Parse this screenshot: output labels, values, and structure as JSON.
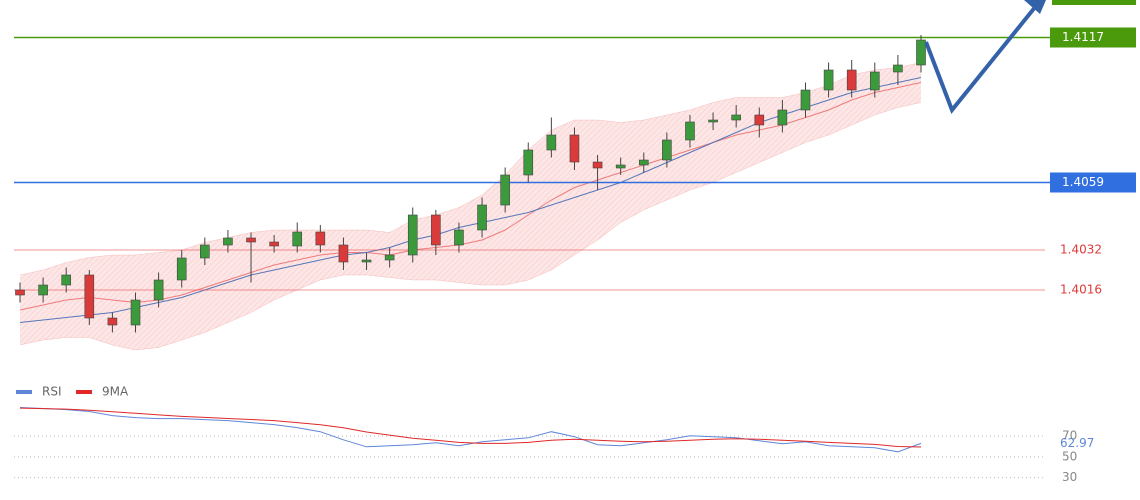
{
  "chart_data": [
    {
      "type": "candlestick",
      "ylim": [
        1.3984,
        1.4132
      ],
      "up_color": "#3c9a3c",
      "down_color": "#d93a3a",
      "candles": {
        "open": [
          1.4016,
          1.4014,
          1.4018,
          1.4022,
          1.40048,
          1.4002,
          1.4012,
          1.402,
          1.40288,
          1.4034,
          1.40368,
          1.40352,
          1.40336,
          1.40392,
          1.4034,
          1.40272,
          1.4028,
          1.403,
          1.4046,
          1.4034,
          1.404,
          1.405,
          1.4062,
          1.4072,
          1.4078,
          1.40672,
          1.40648,
          1.4066,
          1.4068,
          1.4076,
          1.40832,
          1.4084,
          1.4086,
          1.4082,
          1.4088,
          1.4096,
          1.4104,
          1.4096,
          1.41032,
          1.4106
        ],
        "high": [
          1.4019,
          1.4021,
          1.4025,
          1.4024,
          1.4007,
          1.4015,
          1.4023,
          1.4032,
          1.4037,
          1.404,
          1.4039,
          1.4038,
          1.4043,
          1.4042,
          1.4037,
          1.4031,
          1.4033,
          1.4049,
          1.4048,
          1.4043,
          1.4053,
          1.4065,
          1.4075,
          1.4085,
          1.4081,
          1.407,
          1.4069,
          1.4071,
          1.4079,
          1.4086,
          1.4087,
          1.409,
          1.4089,
          1.4092,
          1.4099,
          1.4107,
          1.4108,
          1.4107,
          1.411,
          1.4118
        ],
        "low": [
          1.4011,
          1.4011,
          1.4015,
          1.4002,
          1.3999,
          1.3999,
          1.4009,
          1.4017,
          1.4026,
          1.4031,
          1.4019,
          1.4031,
          1.4031,
          1.4031,
          1.4024,
          1.4024,
          1.4025,
          1.4027,
          1.403,
          1.4031,
          1.4037,
          1.4047,
          1.4059,
          1.4069,
          1.4064,
          1.4056,
          1.4062,
          1.4063,
          1.4065,
          1.4073,
          1.408,
          1.4081,
          1.4077,
          1.4079,
          1.4085,
          1.4093,
          1.4093,
          1.4093,
          1.4098,
          1.4103
        ],
        "close": [
          1.4014,
          1.4018,
          1.4022,
          1.40048,
          1.4002,
          1.4012,
          1.402,
          1.40288,
          1.4034,
          1.40368,
          1.40352,
          1.40336,
          1.40392,
          1.4034,
          1.40272,
          1.4028,
          1.403,
          1.4046,
          1.4034,
          1.404,
          1.405,
          1.4062,
          1.4072,
          1.4078,
          1.40672,
          1.40648,
          1.4066,
          1.4068,
          1.4076,
          1.40832,
          1.4084,
          1.4086,
          1.4082,
          1.4088,
          1.4096,
          1.4104,
          1.4096,
          1.41032,
          1.4106,
          1.4116
        ]
      },
      "bands": {
        "color": "#f08a8a",
        "upper": [
          1.4022,
          1.4024,
          1.4027,
          1.4029,
          1.403,
          1.403,
          1.4031,
          1.4032,
          1.4035,
          1.4037,
          1.4039,
          1.404,
          1.404,
          1.404,
          1.404,
          1.404,
          1.4039,
          1.4044,
          1.4046,
          1.4049,
          1.4054,
          1.4062,
          1.4072,
          1.408,
          1.4084,
          1.4084,
          1.4083,
          1.4084,
          1.4086,
          1.4088,
          1.4091,
          1.4093,
          1.4093,
          1.4093,
          1.4095,
          1.4098,
          1.4102,
          1.4104,
          1.4105,
          1.4107
        ],
        "lower": [
          1.3994,
          1.3996,
          1.3997,
          1.3997,
          1.3994,
          1.3992,
          1.3993,
          1.3996,
          1.3999,
          1.4003,
          1.4007,
          1.4012,
          1.4016,
          1.402,
          1.4022,
          1.4022,
          1.4021,
          1.402,
          1.402,
          1.4019,
          1.4018,
          1.4018,
          1.402,
          1.4024,
          1.403,
          1.4036,
          1.4043,
          1.4048,
          1.4052,
          1.4056,
          1.4059,
          1.4063,
          1.4067,
          1.4071,
          1.4075,
          1.4078,
          1.4082,
          1.4086,
          1.4089,
          1.4091
        ]
      },
      "lines": [
        {
          "color": "#ef7b7b",
          "values": [
            1.4008,
            1.401,
            1.4012,
            1.4013,
            1.4012,
            1.4011,
            1.4012,
            1.4014,
            1.4017,
            1.402,
            1.4023,
            1.4026,
            1.4028,
            1.403,
            1.4031,
            1.4031,
            1.403,
            1.4032,
            1.4033,
            1.4034,
            1.4036,
            1.404,
            1.4046,
            1.4052,
            1.4057,
            1.406,
            1.4063,
            1.4066,
            1.4069,
            1.4072,
            1.4075,
            1.4078,
            1.408,
            1.4082,
            1.4085,
            1.4088,
            1.4092,
            1.4095,
            1.4097,
            1.4099
          ]
        },
        {
          "color": "#5577bb",
          "values": [
            1.4003,
            1.4004,
            1.4005,
            1.4006,
            1.4007,
            1.4009,
            1.4011,
            1.4013,
            1.4016,
            1.4019,
            1.4022,
            1.4024,
            1.4026,
            1.4028,
            1.403,
            1.4031,
            1.4033,
            1.4036,
            1.4038,
            1.4041,
            1.4043,
            1.4045,
            1.4047,
            1.405,
            1.4053,
            1.4056,
            1.4059,
            1.4063,
            1.4067,
            1.4071,
            1.4075,
            1.4079,
            1.4083,
            1.4086,
            1.4089,
            1.4092,
            1.4095,
            1.4097,
            1.4099,
            1.4101
          ]
        }
      ],
      "price_levels": [
        {
          "value": 1.4117,
          "color": "#4a9a0c",
          "tag": true
        },
        {
          "value": 1.4059,
          "color": "#2f6fe0",
          "tag": true
        },
        {
          "value": 1.4032,
          "color": "#e03a3a",
          "tag": false
        },
        {
          "value": 1.4016,
          "color": "#e03a3a",
          "tag": false
        }
      ]
    },
    {
      "type": "line",
      "ylim": [
        20,
        100
      ],
      "yticks": [
        70,
        50,
        30
      ],
      "grid": true,
      "series": [
        {
          "name": "RSI",
          "color": "#5f86d9",
          "values": [
            97.6,
            96.6,
            95.6,
            93.7,
            89.8,
            87.9,
            86.9,
            86.9,
            85.9,
            85.0,
            83.0,
            81.1,
            78.2,
            74.3,
            66.5,
            59.7,
            60.7,
            61.7,
            63.6,
            60.7,
            64.6,
            66.5,
            68.4,
            74.3,
            69.4,
            61.7,
            60.7,
            63.6,
            66.5,
            70.4,
            69.4,
            68.4,
            65.5,
            62.6,
            64.6,
            60.7,
            59.7,
            58.7,
            54.9,
            62.97
          ]
        },
        {
          "name": "9MA",
          "color": "#e02828",
          "values": [
            97,
            96.5,
            96,
            95,
            93.5,
            92,
            90.5,
            89,
            88,
            87,
            86,
            85,
            83,
            81,
            78,
            74,
            71,
            68,
            66,
            64,
            63,
            63,
            64,
            66,
            67,
            66,
            65,
            64.5,
            65,
            66,
            67,
            67.5,
            67,
            66,
            65,
            64,
            63,
            62,
            60,
            59.5
          ]
        }
      ]
    }
  ]
}
